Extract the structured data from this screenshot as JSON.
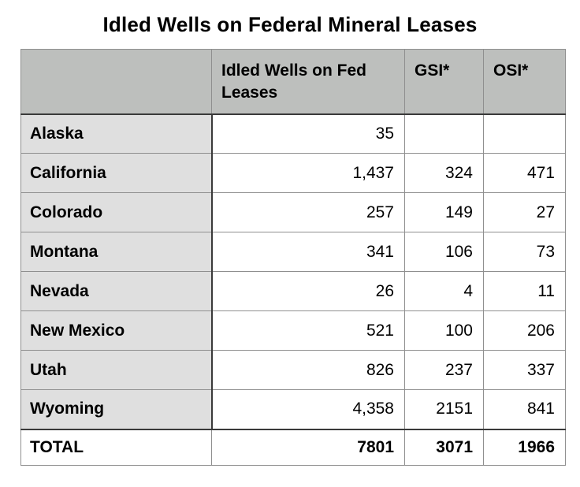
{
  "title": "Idled Wells on Federal Mineral Leases",
  "colors": {
    "page_bg": "#ffffff",
    "header_bg": "#bdbfbd",
    "state_column_bg": "#dfdfdf",
    "grid_line": "#8f8f8f",
    "row_line": "#a8a8a8",
    "heavy_rule": "#3a3a3a",
    "text": "#000000"
  },
  "chart_data": {
    "type": "table",
    "title": "Idled Wells on Federal Mineral Leases",
    "columns": [
      "",
      "Idled Wells on Fed Leases",
      "GSI*",
      "OSI*"
    ],
    "rows": [
      [
        "Alaska",
        "35",
        "",
        ""
      ],
      [
        "California",
        "1,437",
        "324",
        "471"
      ],
      [
        "Colorado",
        "257",
        "149",
        "27"
      ],
      [
        "Montana",
        "341",
        "106",
        "73"
      ],
      [
        "Nevada",
        "26",
        "4",
        "11"
      ],
      [
        "New Mexico",
        "521",
        "100",
        "206"
      ],
      [
        "Utah",
        "826",
        "237",
        "337"
      ],
      [
        "Wyoming",
        "4,358",
        "2151",
        "841"
      ]
    ],
    "total_row": [
      "TOTAL",
      "7801",
      "3071",
      "1966"
    ],
    "layout": {
      "header_row_shaded": true,
      "state_column_shaded": true,
      "numbers_right_aligned": true,
      "heavy_rule_below_header": true,
      "heavy_rule_above_total": true
    }
  }
}
